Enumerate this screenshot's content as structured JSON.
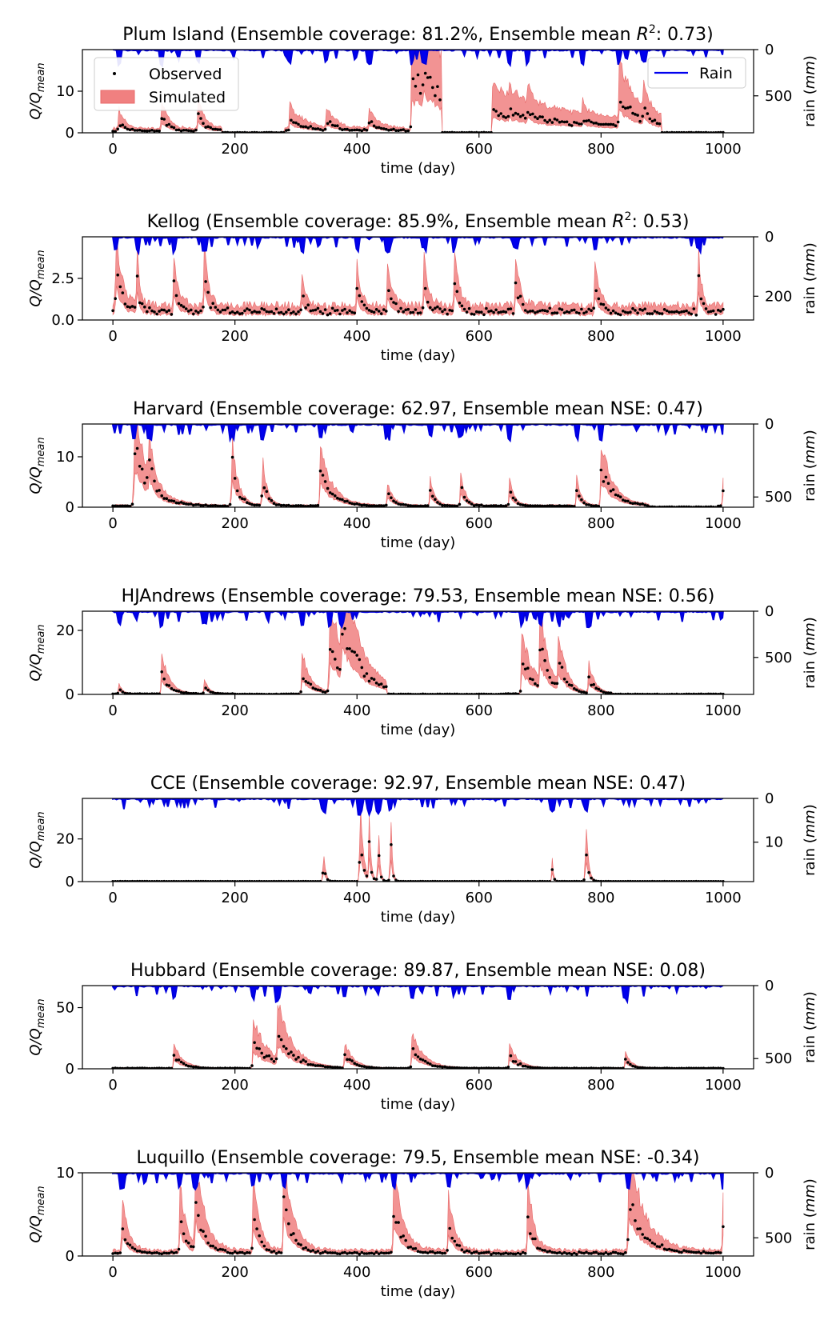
{
  "chart_data": [
    {
      "type": "area",
      "title_main": "Plum Island (Ensemble coverage: 81.2%, Ensemble mean ",
      "title_metric": "R",
      "title_sup": "2",
      "title_end": ": 0.73)",
      "xlabel": "time (day)",
      "ylabel_main": "Q/Q",
      "ylabel_sub": "mean",
      "rain_label": "rain (mm)",
      "xlim": [
        -50,
        1050
      ],
      "ylim": [
        0,
        20
      ],
      "yticks": [
        0,
        10
      ],
      "rain_lim": [
        0,
        900
      ],
      "rain_ticks": [
        0,
        500
      ],
      "rain_scale": 900,
      "peaks": [
        [
          10,
          2.5,
          40
        ],
        [
          80,
          4,
          40
        ],
        [
          140,
          4.5,
          40
        ],
        [
          290,
          3,
          100
        ],
        [
          350,
          2.5,
          60
        ],
        [
          420,
          2.5,
          60
        ],
        [
          490,
          13,
          600
        ],
        [
          510,
          5,
          80
        ],
        [
          650,
          1.5,
          30
        ],
        [
          680,
          3,
          30
        ],
        [
          770,
          2,
          30
        ],
        [
          830,
          7.5,
          120
        ],
        [
          870,
          3,
          40
        ]
      ],
      "zero": [
        [
          180,
          280
        ],
        [
          540,
          620
        ],
        [
          900,
          1000
        ]
      ],
      "upper": 1.8,
      "base": 0.6,
      "legend": {
        "observed": "Observed",
        "simulated": "Simulated",
        "rain": "Rain"
      }
    },
    {
      "type": "area",
      "title_main": "Kellog (Ensemble coverage: 85.9%, Ensemble mean ",
      "title_metric": "R",
      "title_sup": "2",
      "title_end": ": 0.53)",
      "xlabel": "time (day)",
      "ylabel_main": "Q/Q",
      "ylabel_sub": "mean",
      "rain_label": "rain (mm)",
      "xlim": [
        -50,
        1050
      ],
      "ylim": [
        0,
        5
      ],
      "yticks": [
        0.0,
        2.5
      ],
      "ytick_labels": [
        "0.0",
        "2.5"
      ],
      "rain_lim": [
        0,
        280
      ],
      "rain_ticks": [
        0,
        200
      ],
      "rain_scale": 280,
      "peaks": [
        [
          5,
          3.2,
          40
        ],
        [
          40,
          2.2,
          20
        ],
        [
          100,
          2,
          30
        ],
        [
          150,
          2.5,
          30
        ],
        [
          310,
          1.3,
          30
        ],
        [
          400,
          1.6,
          30
        ],
        [
          450,
          1.8,
          30
        ],
        [
          510,
          2.2,
          30
        ],
        [
          560,
          2.5,
          30
        ],
        [
          660,
          2.2,
          30
        ],
        [
          790,
          2,
          30
        ],
        [
          960,
          2.5,
          20
        ]
      ],
      "zero": [],
      "upper": 1.4,
      "base": 0.6,
      "legend": null
    },
    {
      "type": "area",
      "title_main": "Harvard (Ensemble coverage: 62.97, Ensemble mean NSE: 0.47)",
      "title_metric": "",
      "title_sup": "",
      "title_end": "",
      "xlabel": "time (day)",
      "ylabel_main": "Q/Q",
      "ylabel_sub": "mean",
      "rain_label": "rain (mm)",
      "xlim": [
        -50,
        1050
      ],
      "ylim": [
        0,
        16.5
      ],
      "yticks": [
        0,
        10
      ],
      "rain_lim": [
        0,
        570
      ],
      "rain_ticks": [
        0,
        500
      ],
      "rain_scale": 570,
      "peaks": [
        [
          35,
          13,
          100
        ],
        [
          60,
          6,
          30
        ],
        [
          195,
          9.5,
          40
        ],
        [
          245,
          7,
          30
        ],
        [
          340,
          8,
          80
        ],
        [
          450,
          3,
          40
        ],
        [
          520,
          4,
          30
        ],
        [
          570,
          5,
          30
        ],
        [
          650,
          4,
          30
        ],
        [
          760,
          4,
          30
        ],
        [
          800,
          9,
          80
        ],
        [
          1000,
          3.5,
          20
        ]
      ],
      "zero": [
        [
          880,
          990
        ]
      ],
      "upper": 1.4,
      "base": 0.3,
      "legend": null
    },
    {
      "type": "area",
      "title_main": "HJAndrews (Ensemble coverage: 79.53, Ensemble mean NSE: 0.56)",
      "title_metric": "",
      "title_sup": "",
      "title_end": "",
      "xlabel": "time (day)",
      "ylabel_main": "Q/Q",
      "ylabel_sub": "mean",
      "rain_label": "rain (mm)",
      "xlim": [
        -50,
        1050
      ],
      "ylim": [
        0,
        26
      ],
      "yticks": [
        0,
        20
      ],
      "rain_lim": [
        0,
        900
      ],
      "rain_ticks": [
        0,
        500
      ],
      "rain_scale": 900,
      "peaks": [
        [
          10,
          2,
          20
        ],
        [
          80,
          8,
          50
        ],
        [
          150,
          3,
          30
        ],
        [
          310,
          8,
          60
        ],
        [
          355,
          18,
          120
        ],
        [
          375,
          19,
          120
        ],
        [
          670,
          12,
          80
        ],
        [
          700,
          14,
          60
        ],
        [
          730,
          10,
          50
        ],
        [
          780,
          6,
          40
        ]
      ],
      "zero": [
        [
          200,
          290
        ],
        [
          450,
          640
        ],
        [
          820,
          1000
        ]
      ],
      "upper": 1.6,
      "base": 0.2,
      "legend": null
    },
    {
      "type": "area",
      "title_main": "CCE (Ensemble coverage: 92.97, Ensemble mean NSE: 0.47)",
      "title_metric": "",
      "title_sup": "",
      "title_end": "",
      "xlabel": "time (day)",
      "ylabel_main": "Q/Q",
      "ylabel_sub": "mean",
      "rain_label": "rain (mm)",
      "xlim": [
        -50,
        1050
      ],
      "ylim": [
        0,
        39
      ],
      "yticks": [
        0,
        20
      ],
      "rain_lim": [
        0,
        19
      ],
      "rain_ticks": [
        0,
        10
      ],
      "rain_scale": 19,
      "peaks": [
        [
          345,
          12,
          12
        ],
        [
          405,
          34,
          18
        ],
        [
          420,
          22,
          12
        ],
        [
          435,
          20,
          10
        ],
        [
          455,
          24,
          10
        ],
        [
          720,
          8,
          8
        ],
        [
          775,
          25,
          14
        ]
      ],
      "zero": [],
      "upper": 1.5,
      "base": 0.1,
      "legend": null
    },
    {
      "type": "area",
      "title_main": "Hubbard (Ensemble coverage: 89.87, Ensemble mean NSE: 0.08)",
      "title_metric": "",
      "title_sup": "",
      "title_end": "",
      "xlabel": "time (day)",
      "ylabel_main": "Q/Q",
      "ylabel_sub": "mean",
      "rain_label": "rain (mm)",
      "xlim": [
        -50,
        1050
      ],
      "ylim": [
        0,
        68
      ],
      "yticks": [
        0,
        50
      ],
      "rain_lim": [
        0,
        570
      ],
      "rain_ticks": [
        0,
        500
      ],
      "rain_scale": 570,
      "peaks": [
        [
          100,
          12,
          60
        ],
        [
          230,
          25,
          100
        ],
        [
          270,
          28,
          100
        ],
        [
          380,
          12,
          60
        ],
        [
          490,
          18,
          80
        ],
        [
          650,
          12,
          60
        ],
        [
          840,
          8,
          40
        ]
      ],
      "zero": [],
      "upper": 1.6,
      "base": 0.5,
      "legend": null
    },
    {
      "type": "area",
      "title_main": "Luquillo (Ensemble coverage: 79.5, Ensemble mean NSE: -0.34)",
      "title_metric": "",
      "title_sup": "",
      "title_end": "",
      "xlabel": "time (day)",
      "ylabel_main": "Q/Q",
      "ylabel_sub": "mean",
      "rain_label": "rain (mm)",
      "xlim": [
        -50,
        1050
      ],
      "ylim": [
        0,
        10
      ],
      "yticks": [
        0,
        10
      ],
      "rain_lim": [
        0,
        640
      ],
      "rain_ticks": [
        0,
        500
      ],
      "rain_scale": 640,
      "peaks": [
        [
          15,
          4,
          40
        ],
        [
          110,
          5,
          40
        ],
        [
          135,
          7,
          60
        ],
        [
          230,
          5.5,
          40
        ],
        [
          280,
          7,
          60
        ],
        [
          460,
          6,
          60
        ],
        [
          550,
          4,
          40
        ],
        [
          680,
          5,
          40
        ],
        [
          845,
          7.8,
          100
        ],
        [
          1000,
          4,
          30
        ]
      ],
      "zero": [],
      "upper": 1.7,
      "base": 0.4,
      "legend": null
    }
  ]
}
